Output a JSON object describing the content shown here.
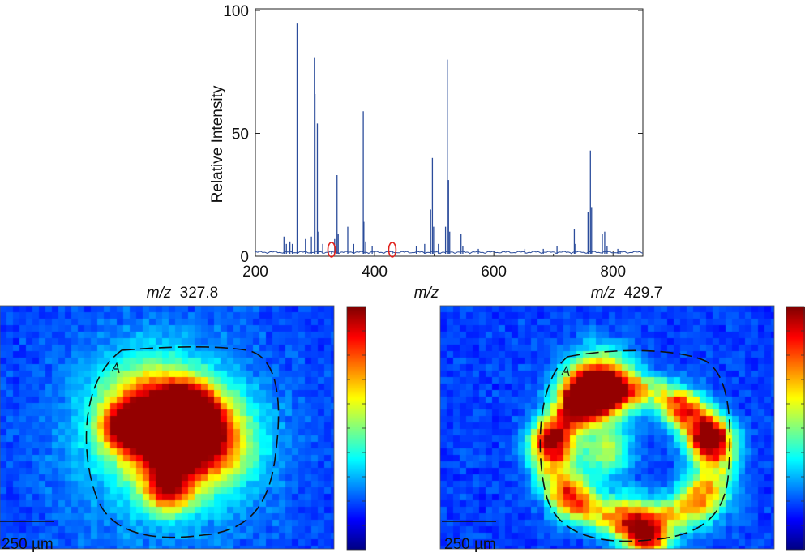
{
  "chart_data": [
    {
      "type": "line",
      "title": "",
      "xlabel": "m/z",
      "ylabel": "Relative Intensity",
      "xlim": [
        200,
        850
      ],
      "ylim": [
        0,
        100
      ],
      "xticks": [
        200,
        400,
        600,
        800
      ],
      "yticks": [
        0,
        50,
        100
      ],
      "grid": false,
      "color": "#2b4c9b",
      "baseline": 1.0,
      "peaks": [
        {
          "mz": 248,
          "i": 8
        },
        {
          "mz": 252,
          "i": 5
        },
        {
          "mz": 258,
          "i": 6
        },
        {
          "mz": 262,
          "i": 5
        },
        {
          "mz": 270,
          "i": 95
        },
        {
          "mz": 271,
          "i": 82
        },
        {
          "mz": 284,
          "i": 7
        },
        {
          "mz": 294,
          "i": 8
        },
        {
          "mz": 299,
          "i": 81
        },
        {
          "mz": 300,
          "i": 66
        },
        {
          "mz": 304,
          "i": 54
        },
        {
          "mz": 306,
          "i": 10
        },
        {
          "mz": 313,
          "i": 5
        },
        {
          "mz": 327.8,
          "i": 2
        },
        {
          "mz": 333,
          "i": 7
        },
        {
          "mz": 337,
          "i": 33
        },
        {
          "mz": 339,
          "i": 9
        },
        {
          "mz": 355,
          "i": 12
        },
        {
          "mz": 365,
          "i": 5
        },
        {
          "mz": 381,
          "i": 59
        },
        {
          "mz": 382,
          "i": 14
        },
        {
          "mz": 385,
          "i": 6
        },
        {
          "mz": 396,
          "i": 4
        },
        {
          "mz": 429.7,
          "i": 2
        },
        {
          "mz": 470,
          "i": 4
        },
        {
          "mz": 484,
          "i": 5
        },
        {
          "mz": 494,
          "i": 19
        },
        {
          "mz": 497,
          "i": 40
        },
        {
          "mz": 499,
          "i": 12
        },
        {
          "mz": 507,
          "i": 5
        },
        {
          "mz": 519,
          "i": 12
        },
        {
          "mz": 522,
          "i": 80
        },
        {
          "mz": 524,
          "i": 31
        },
        {
          "mz": 526,
          "i": 10
        },
        {
          "mz": 545,
          "i": 9
        },
        {
          "mz": 548,
          "i": 4
        },
        {
          "mz": 574,
          "i": 3
        },
        {
          "mz": 652,
          "i": 3
        },
        {
          "mz": 683,
          "i": 3
        },
        {
          "mz": 706,
          "i": 4
        },
        {
          "mz": 735,
          "i": 11
        },
        {
          "mz": 737,
          "i": 5
        },
        {
          "mz": 758,
          "i": 18
        },
        {
          "mz": 762,
          "i": 43
        },
        {
          "mz": 764,
          "i": 20
        },
        {
          "mz": 782,
          "i": 9
        },
        {
          "mz": 786,
          "i": 10
        },
        {
          "mz": 790,
          "i": 4
        },
        {
          "mz": 808,
          "i": 3
        },
        {
          "mz": 812,
          "i": 2
        }
      ],
      "highlighted": [
        {
          "mz": 327.8,
          "color": "#e0201b"
        },
        {
          "mz": 429.7,
          "color": "#e0201b"
        }
      ]
    },
    {
      "type": "heatmap",
      "title_prefix": "m/z",
      "title_value": "327.8",
      "scalebar_label": "250 µm",
      "colormap": "jet",
      "hotspots": [
        {
          "cx": 0.53,
          "cy": 0.54,
          "s": 0.09,
          "v": 1.0
        },
        {
          "cx": 0.56,
          "cy": 0.44,
          "s": 0.06,
          "v": 0.72
        },
        {
          "cx": 0.44,
          "cy": 0.42,
          "s": 0.1,
          "v": 0.48
        },
        {
          "cx": 0.37,
          "cy": 0.5,
          "s": 0.05,
          "v": 0.55
        },
        {
          "cx": 0.5,
          "cy": 0.76,
          "s": 0.05,
          "v": 0.58
        },
        {
          "cx": 0.65,
          "cy": 0.56,
          "s": 0.09,
          "v": 0.38
        },
        {
          "cx": 0.5,
          "cy": 0.55,
          "s": 0.2,
          "v": 0.3
        }
      ]
    },
    {
      "type": "heatmap",
      "title_prefix": "m/z",
      "title_value": "429.7",
      "scalebar_label": "250 µm",
      "colormap": "jet",
      "hotspots": [
        {
          "cx": 0.48,
          "cy": 0.33,
          "s": 0.07,
          "v": 1.0
        },
        {
          "cx": 0.43,
          "cy": 0.38,
          "s": 0.05,
          "v": 0.65
        },
        {
          "cx": 0.8,
          "cy": 0.55,
          "s": 0.045,
          "v": 0.85
        },
        {
          "cx": 0.72,
          "cy": 0.44,
          "s": 0.04,
          "v": 0.5
        },
        {
          "cx": 0.34,
          "cy": 0.56,
          "s": 0.05,
          "v": 0.62
        },
        {
          "cx": 0.4,
          "cy": 0.78,
          "s": 0.05,
          "v": 0.45
        },
        {
          "cx": 0.62,
          "cy": 0.96,
          "s": 0.05,
          "v": 0.8
        },
        {
          "cx": 0.5,
          "cy": 0.6,
          "s": 0.05,
          "v": 0.45
        },
        {
          "cx": 0.56,
          "cy": 0.85,
          "s": 0.05,
          "v": 0.35
        },
        {
          "cx": 0.78,
          "cy": 0.8,
          "s": 0.06,
          "v": 0.32
        }
      ],
      "ring": {
        "cx": 0.58,
        "cy": 0.62,
        "rx": 0.25,
        "ry": 0.27,
        "w": 0.06,
        "v": 0.4
      }
    }
  ]
}
